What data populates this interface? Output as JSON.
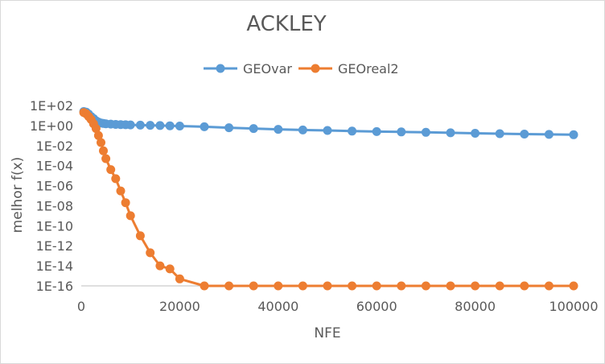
{
  "chart_data": {
    "type": "line",
    "title": "ACKLEY",
    "xlabel": "NFE",
    "ylabel": "melhor f(x)",
    "x_scale": "linear",
    "y_scale": "log",
    "xlim": [
      0,
      100000
    ],
    "ylim": [
      1e-16,
      100
    ],
    "x_ticks": [
      0,
      20000,
      40000,
      60000,
      80000,
      100000
    ],
    "x_tick_labels": [
      "0",
      "20000",
      "40000",
      "60000",
      "80000",
      "100000"
    ],
    "y_ticks": [
      100,
      1,
      0.01,
      0.0001,
      1e-06,
      1e-08,
      1e-10,
      1e-12,
      1e-14,
      1e-16
    ],
    "y_tick_labels": [
      "1E+02",
      "1E+00",
      "1E-02",
      "1E-04",
      "1E-06",
      "1E-08",
      "1E-10",
      "1E-12",
      "1E-14",
      "1E-16"
    ],
    "grid": false,
    "legend_position": "top",
    "series": [
      {
        "name": "GEOvar",
        "color": "#5B9BD5",
        "x": [
          500,
          1000,
          1500,
          2000,
          2500,
          3000,
          3500,
          4000,
          4500,
          5000,
          6000,
          7000,
          8000,
          9000,
          10000,
          12000,
          14000,
          16000,
          18000,
          20000,
          25000,
          30000,
          35000,
          40000,
          45000,
          50000,
          55000,
          60000,
          65000,
          70000,
          75000,
          80000,
          85000,
          90000,
          95000,
          100000
        ],
        "y": [
          25,
          22,
          14,
          8,
          5,
          3,
          2.2,
          1.8,
          1.6,
          1.5,
          1.4,
          1.3,
          1.25,
          1.2,
          1.15,
          1.1,
          1.05,
          1.0,
          0.95,
          0.9,
          0.75,
          0.6,
          0.5,
          0.42,
          0.36,
          0.32,
          0.28,
          0.25,
          0.23,
          0.21,
          0.19,
          0.17,
          0.155,
          0.14,
          0.13,
          0.12
        ]
      },
      {
        "name": "GEOreal2",
        "color": "#ED7D31",
        "x": [
          500,
          1000,
          1500,
          2000,
          2500,
          3000,
          3500,
          4000,
          4500,
          5000,
          6000,
          7000,
          8000,
          9000,
          10000,
          12000,
          14000,
          16000,
          18000,
          20000,
          25000,
          30000,
          35000,
          40000,
          45000,
          50000,
          55000,
          60000,
          65000,
          70000,
          75000,
          80000,
          85000,
          90000,
          95000,
          100000
        ],
        "y": [
          20,
          15,
          8,
          4,
          1.5,
          0.5,
          0.1,
          0.02,
          0.003,
          0.0005,
          4e-05,
          5e-06,
          3e-07,
          2e-08,
          1e-09,
          1e-11,
          2e-13,
          1e-14,
          5e-15,
          5e-16,
          1e-16,
          1e-16,
          1e-16,
          1e-16,
          1e-16,
          1e-16,
          1e-16,
          1e-16,
          1e-16,
          1e-16,
          1e-16,
          1e-16,
          1e-16,
          1e-16,
          1e-16,
          1e-16
        ]
      }
    ]
  }
}
